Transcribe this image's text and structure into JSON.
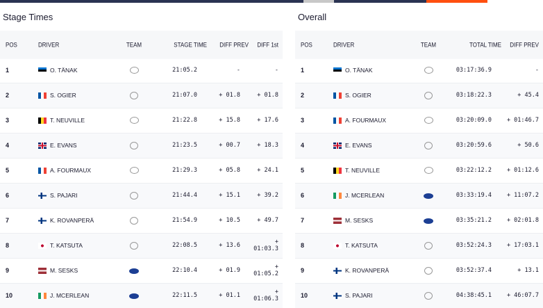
{
  "colors": {
    "navy": "#2a3352",
    "gray": "#c8c8c8",
    "orange": "#ff4f0f"
  },
  "stage": {
    "title": "Stage Times",
    "headers": [
      "POS",
      "DRIVER",
      "TEAM",
      "STAGE TIME",
      "DIFF PREV",
      "DIFF 1st"
    ],
    "rows": [
      {
        "pos": "1",
        "flag": "EE",
        "driver": "O. TÄNAK",
        "team": "hyundai",
        "time": "21:05.2",
        "prev": "-",
        "first": "-"
      },
      {
        "pos": "2",
        "flag": "FR",
        "driver": "S. OGIER",
        "team": "toyota",
        "time": "21:07.0",
        "prev": "+ 01.8",
        "first": "+ 01.8"
      },
      {
        "pos": "3",
        "flag": "BE",
        "driver": "T. NEUVILLE",
        "team": "hyundai",
        "time": "21:22.8",
        "prev": "+ 15.8",
        "first": "+ 17.6"
      },
      {
        "pos": "4",
        "flag": "GB",
        "driver": "E. EVANS",
        "team": "toyota",
        "time": "21:23.5",
        "prev": "+ 00.7",
        "first": "+ 18.3"
      },
      {
        "pos": "5",
        "flag": "FR",
        "driver": "A. FOURMAUX",
        "team": "hyundai",
        "time": "21:29.3",
        "prev": "+ 05.8",
        "first": "+ 24.1"
      },
      {
        "pos": "6",
        "flag": "FI",
        "driver": "S. PAJARI",
        "team": "toyota",
        "time": "21:44.4",
        "prev": "+ 15.1",
        "first": "+ 39.2"
      },
      {
        "pos": "7",
        "flag": "FI",
        "driver": "K. ROVANPERÄ",
        "team": "toyota",
        "time": "21:54.9",
        "prev": "+ 10.5",
        "first": "+ 49.7"
      },
      {
        "pos": "8",
        "flag": "JP",
        "driver": "T. KATSUTA",
        "team": "toyota",
        "time": "22:08.5",
        "prev": "+ 13.6",
        "first": "+ 01:03.3"
      },
      {
        "pos": "9",
        "flag": "LV",
        "driver": "M. SESKS",
        "team": "ford",
        "time": "22:10.4",
        "prev": "+ 01.9",
        "first": "+ 01:05.2"
      },
      {
        "pos": "10",
        "flag": "IE",
        "driver": "J. MCERLEAN",
        "team": "ford",
        "time": "22:11.5",
        "prev": "+ 01.1",
        "first": "+ 01:06.3"
      }
    ]
  },
  "overall": {
    "title": "Overall",
    "headers": [
      "POS",
      "DRIVER",
      "TEAM",
      "TOTAL TIME",
      "DIFF PREV"
    ],
    "rows": [
      {
        "pos": "1",
        "flag": "EE",
        "driver": "O. TÄNAK",
        "team": "hyundai",
        "time": "03:17:36.9",
        "prev": "-"
      },
      {
        "pos": "2",
        "flag": "FR",
        "driver": "S. OGIER",
        "team": "toyota",
        "time": "03:18:22.3",
        "prev": "+ 45.4"
      },
      {
        "pos": "3",
        "flag": "FR",
        "driver": "A. FOURMAUX",
        "team": "hyundai",
        "time": "03:20:09.0",
        "prev": "+ 01:46.7"
      },
      {
        "pos": "4",
        "flag": "GB",
        "driver": "E. EVANS",
        "team": "toyota",
        "time": "03:20:59.6",
        "prev": "+ 50.6"
      },
      {
        "pos": "5",
        "flag": "BE",
        "driver": "T. NEUVILLE",
        "team": "hyundai",
        "time": "03:22:12.2",
        "prev": "+ 01:12.6"
      },
      {
        "pos": "6",
        "flag": "IE",
        "driver": "J. MCERLEAN",
        "team": "ford",
        "time": "03:33:19.4",
        "prev": "+ 11:07.2"
      },
      {
        "pos": "7",
        "flag": "LV",
        "driver": "M. SESKS",
        "team": "ford",
        "time": "03:35:21.2",
        "prev": "+ 02:01.8"
      },
      {
        "pos": "8",
        "flag": "JP",
        "driver": "T. KATSUTA",
        "team": "toyota",
        "time": "03:52:24.3",
        "prev": "+ 17:03.1"
      },
      {
        "pos": "9",
        "flag": "FI",
        "driver": "K. ROVANPERÄ",
        "team": "toyota",
        "time": "03:52:37.4",
        "prev": "+ 13.1"
      },
      {
        "pos": "10",
        "flag": "FI",
        "driver": "S. PAJARI",
        "team": "toyota",
        "time": "04:38:45.1",
        "prev": "+ 46:07.7"
      }
    ]
  }
}
